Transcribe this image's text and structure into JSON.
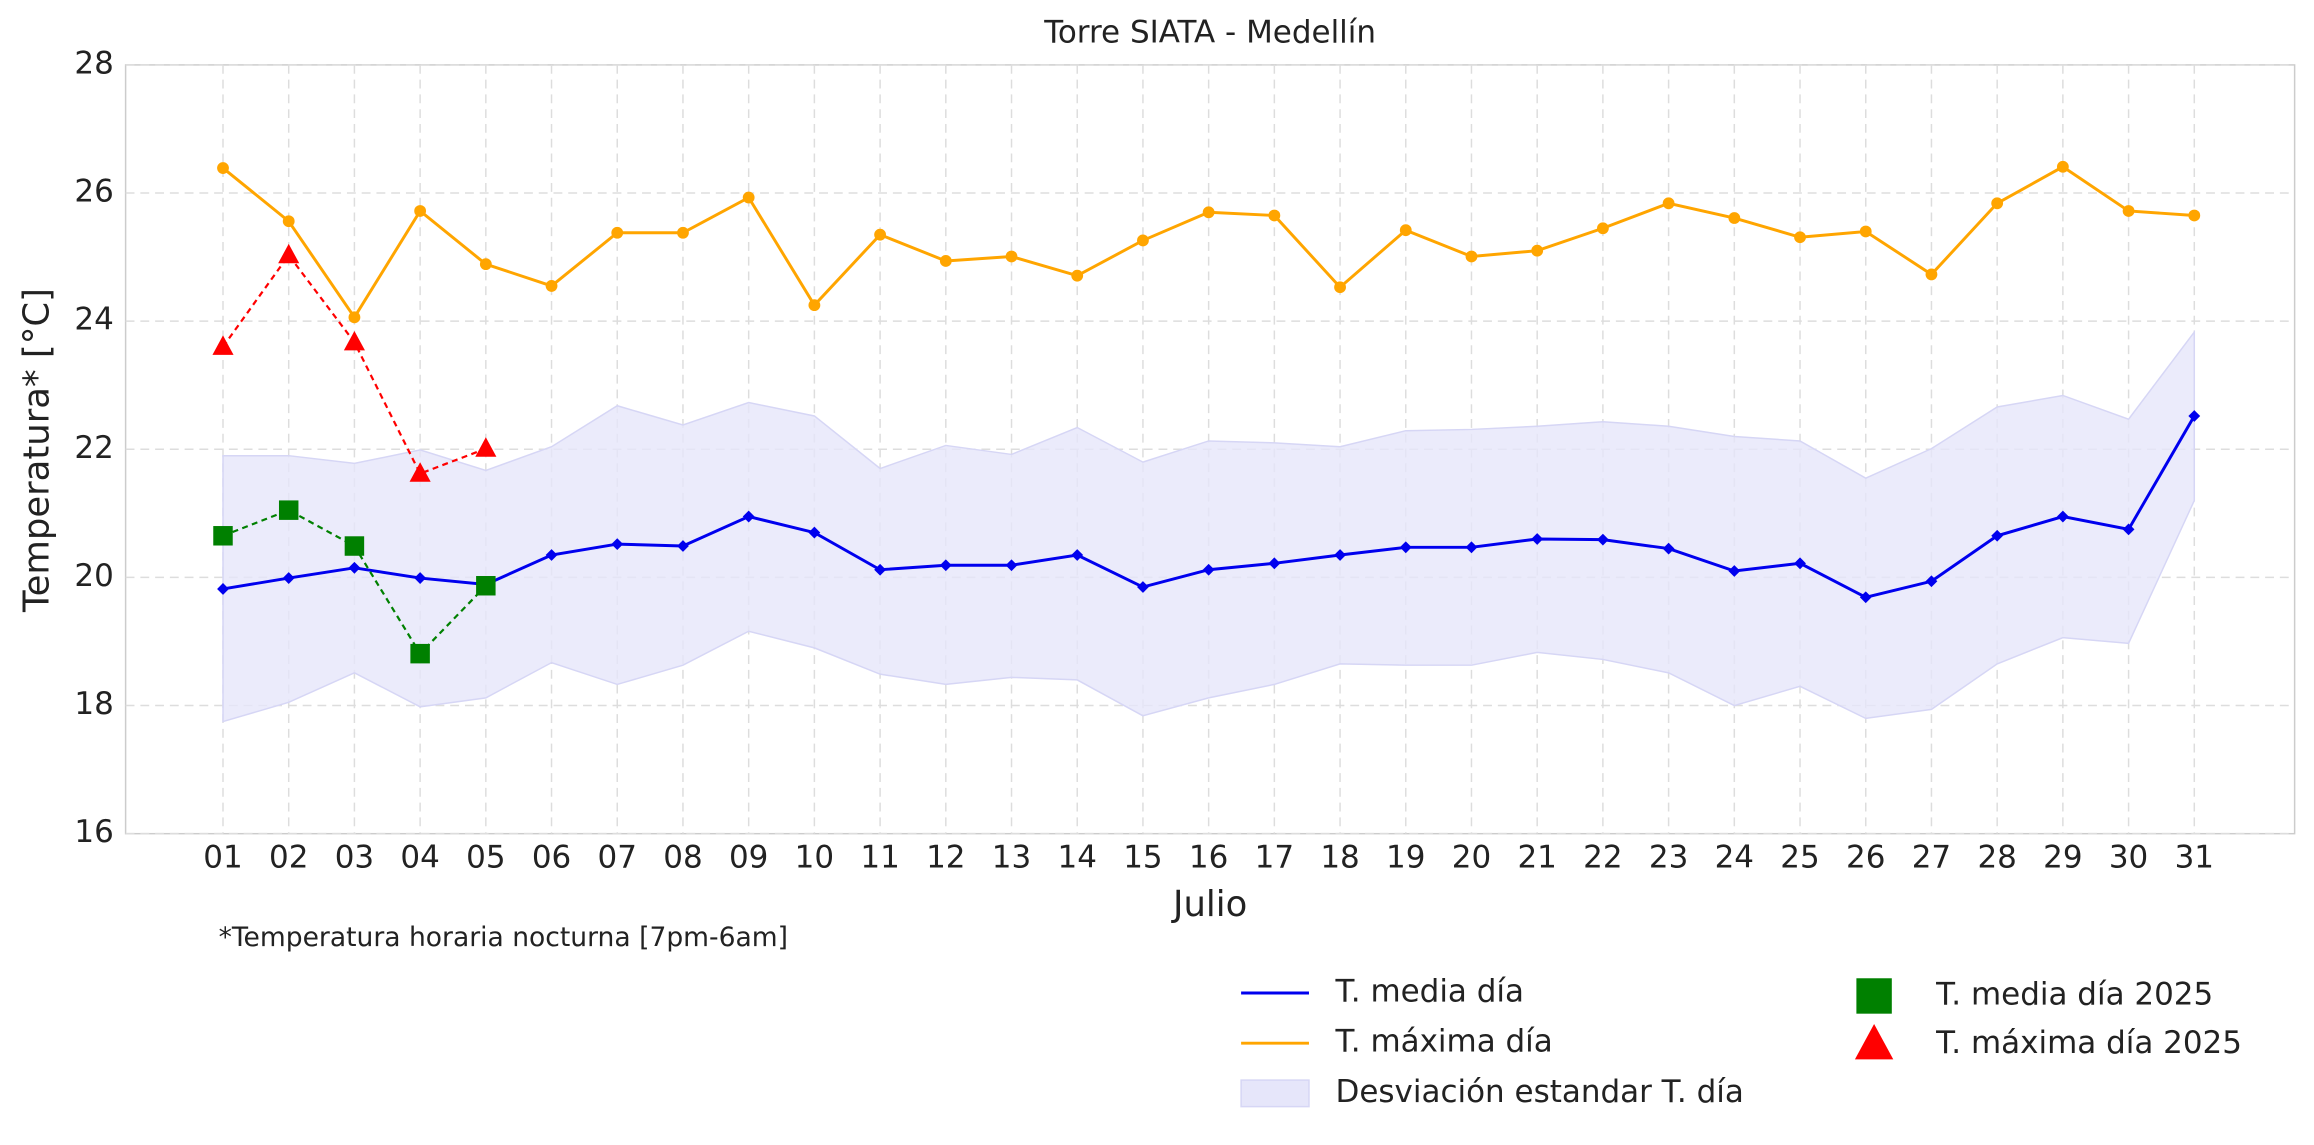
{
  "chart_data": {
    "type": "line",
    "title": "Torre SIATA - Medellín",
    "xlabel": "Julio",
    "ylabel": "Temperatura* [°C]",
    "annotation": "*Temperatura horaria nocturna [7pm-6am]",
    "categories": [
      "01",
      "02",
      "03",
      "04",
      "05",
      "06",
      "07",
      "08",
      "09",
      "10",
      "11",
      "12",
      "13",
      "14",
      "15",
      "16",
      "17",
      "18",
      "19",
      "20",
      "21",
      "22",
      "23",
      "24",
      "25",
      "26",
      "27",
      "28",
      "29",
      "30",
      "31"
    ],
    "ylim": [
      16,
      28
    ],
    "yticks": [
      16,
      18,
      20,
      22,
      24,
      26,
      28
    ],
    "grid": true,
    "band": {
      "name": "Desviación estandar T. día",
      "color": "#e6e6fa",
      "upper": [
        21.9,
        21.9,
        21.78,
        21.99,
        21.67,
        22.04,
        22.68,
        22.38,
        22.73,
        22.52,
        21.7,
        22.06,
        21.92,
        22.34,
        21.8,
        22.13,
        22.1,
        22.04,
        22.29,
        22.31,
        22.36,
        22.43,
        22.36,
        22.2,
        22.13,
        21.55,
        22.01,
        22.66,
        22.84,
        22.47,
        23.83
      ],
      "lower": [
        17.75,
        18.05,
        18.51,
        17.98,
        18.12,
        18.67,
        18.33,
        18.63,
        19.16,
        18.9,
        18.49,
        18.33,
        18.44,
        18.4,
        17.84,
        18.12,
        18.33,
        18.65,
        18.63,
        18.63,
        18.83,
        18.72,
        18.51,
        18.0,
        18.3,
        17.8,
        17.94,
        18.65,
        19.06,
        18.97,
        21.2
      ]
    },
    "series": [
      {
        "name": "T. media día",
        "color": "#0000ee",
        "marker": "diamond",
        "dashed": false,
        "values": [
          19.82,
          19.99,
          20.15,
          19.99,
          19.89,
          20.35,
          20.52,
          20.49,
          20.95,
          20.7,
          20.12,
          20.19,
          20.19,
          20.35,
          19.85,
          20.12,
          20.22,
          20.35,
          20.47,
          20.47,
          20.6,
          20.59,
          20.45,
          20.1,
          20.22,
          19.69,
          19.94,
          20.65,
          20.95,
          20.75,
          22.52
        ]
      },
      {
        "name": "T. máxima día",
        "color": "#ffa500",
        "marker": "circle",
        "dashed": false,
        "values": [
          26.39,
          25.56,
          24.06,
          25.72,
          24.89,
          24.55,
          25.38,
          25.38,
          25.93,
          24.25,
          25.35,
          24.94,
          25.01,
          24.71,
          25.26,
          25.7,
          25.65,
          24.53,
          25.42,
          25.01,
          25.1,
          25.45,
          25.84,
          25.61,
          25.31,
          25.4,
          24.73,
          25.84,
          26.41,
          25.72,
          25.65
        ]
      },
      {
        "name": "T. media día 2025",
        "color": "#008000",
        "marker": "square",
        "dashed": true,
        "values": [
          20.65,
          21.05,
          20.49,
          18.81,
          19.87,
          null,
          null,
          null,
          null,
          null,
          null,
          null,
          null,
          null,
          null,
          null,
          null,
          null,
          null,
          null,
          null,
          null,
          null,
          null,
          null,
          null,
          null,
          null,
          null,
          null,
          null
        ]
      },
      {
        "name": "T. máxima día 2025",
        "color": "#ff0000",
        "marker": "triangle",
        "dashed": true,
        "values": [
          23.6,
          25.03,
          23.67,
          21.62,
          22.01,
          null,
          null,
          null,
          null,
          null,
          null,
          null,
          null,
          null,
          null,
          null,
          null,
          null,
          null,
          null,
          null,
          null,
          null,
          null,
          null,
          null,
          null,
          null,
          null,
          null,
          null
        ]
      }
    ]
  }
}
